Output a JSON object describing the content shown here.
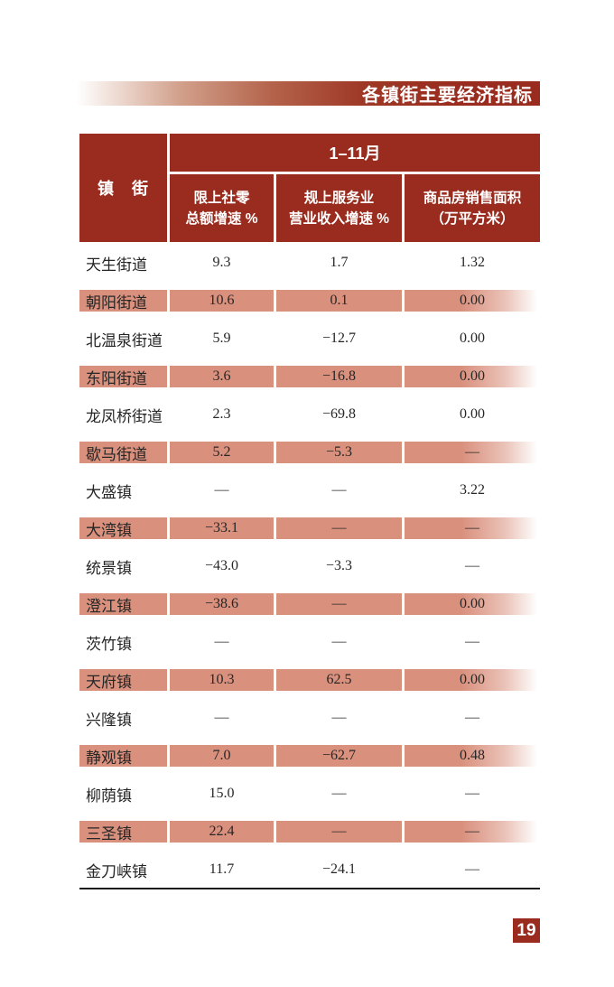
{
  "header_bar": {
    "title": "各镇街主要经济指标"
  },
  "table": {
    "town_col_header": "镇　街",
    "period_header": "1–11月",
    "sub_headers": [
      {
        "line1": "限上社零",
        "line2": "总额增速 %"
      },
      {
        "line1": "规上服务业",
        "line2": "营业收入增速 %"
      },
      {
        "line1": "商品房销售面积",
        "line2": "（万平方米）"
      }
    ],
    "rows": [
      {
        "town": "天生街道",
        "retail_growth": "9.3",
        "service_growth": "1.7",
        "housing_area": "1.32",
        "highlighted": false
      },
      {
        "town": "朝阳街道",
        "retail_growth": "10.6",
        "service_growth": "0.1",
        "housing_area": "0.00",
        "highlighted": true
      },
      {
        "town": "北温泉街道",
        "retail_growth": "5.9",
        "service_growth": "−12.7",
        "housing_area": "0.00",
        "highlighted": false
      },
      {
        "town": "东阳街道",
        "retail_growth": "3.6",
        "service_growth": "−16.8",
        "housing_area": "0.00",
        "highlighted": true
      },
      {
        "town": "龙凤桥街道",
        "retail_growth": "2.3",
        "service_growth": "−69.8",
        "housing_area": "0.00",
        "highlighted": false
      },
      {
        "town": "歇马街道",
        "retail_growth": "5.2",
        "service_growth": "−5.3",
        "housing_area": "—",
        "highlighted": true
      },
      {
        "town": "大盛镇",
        "retail_growth": "—",
        "service_growth": "—",
        "housing_area": "3.22",
        "highlighted": false
      },
      {
        "town": "大湾镇",
        "retail_growth": "−33.1",
        "service_growth": "—",
        "housing_area": "—",
        "highlighted": true
      },
      {
        "town": "统景镇",
        "retail_growth": "−43.0",
        "service_growth": "−3.3",
        "housing_area": "—",
        "highlighted": false
      },
      {
        "town": "澄江镇",
        "retail_growth": "−38.6",
        "service_growth": "—",
        "housing_area": "0.00",
        "highlighted": true
      },
      {
        "town": "茨竹镇",
        "retail_growth": "—",
        "service_growth": "—",
        "housing_area": "—",
        "highlighted": false
      },
      {
        "town": "天府镇",
        "retail_growth": "10.3",
        "service_growth": "62.5",
        "housing_area": "0.00",
        "highlighted": true
      },
      {
        "town": "兴隆镇",
        "retail_growth": "—",
        "service_growth": "—",
        "housing_area": "—",
        "highlighted": false
      },
      {
        "town": "静观镇",
        "retail_growth": "7.0",
        "service_growth": "−62.7",
        "housing_area": "0.48",
        "highlighted": true
      },
      {
        "town": "柳荫镇",
        "retail_growth": "15.0",
        "service_growth": "—",
        "housing_area": "—",
        "highlighted": false
      },
      {
        "town": "三圣镇",
        "retail_growth": "22.4",
        "service_growth": "—",
        "housing_area": "—",
        "highlighted": true
      },
      {
        "town": "金刀峡镇",
        "retail_growth": "11.7",
        "service_growth": "−24.1",
        "housing_area": "—",
        "highlighted": false
      }
    ]
  },
  "footer": {
    "page_number": "19"
  },
  "colors": {
    "dark_red": "#992C1E",
    "highlight_pink": "#D9907D",
    "body_text": "#262626",
    "bottom_rule": "#1C1C1C"
  }
}
